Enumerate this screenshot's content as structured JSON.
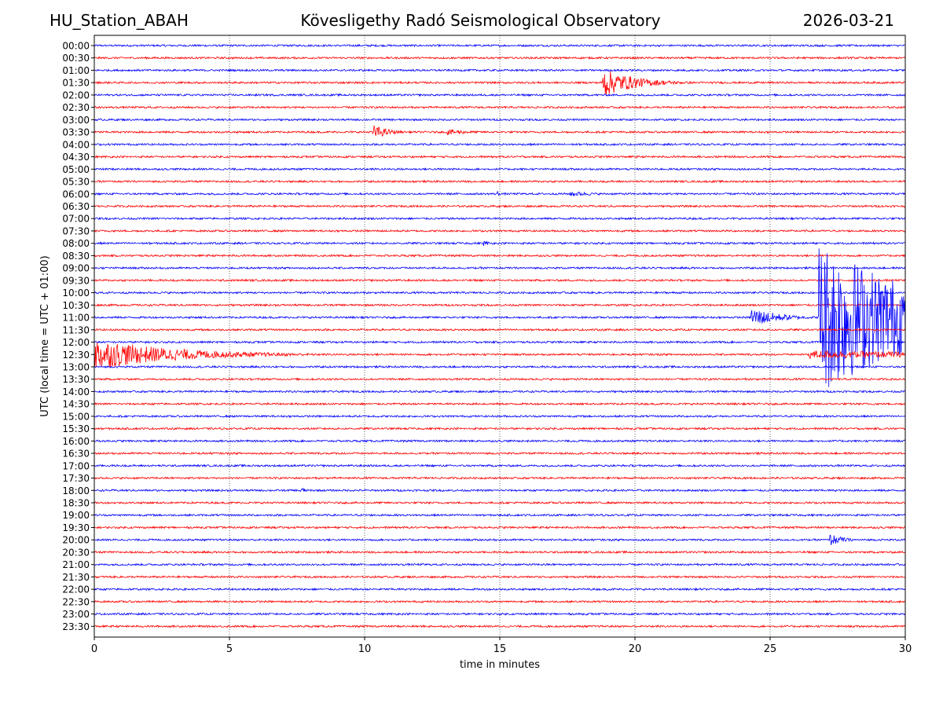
{
  "header": {
    "station": "HU_Station_ABAH",
    "observatory": "Kövesligethy Radó Seismological Observatory",
    "date": "2026-03-21"
  },
  "chart_data": {
    "type": "line",
    "title": "Kövesligethy Radó Seismological Observatory",
    "xlabel": "time in minutes",
    "ylabel": "UTC (local time = UTC + 01:00)",
    "xlim": [
      0,
      30
    ],
    "xticks": [
      "0",
      "5",
      "10",
      "15",
      "20",
      "25",
      "30"
    ],
    "grid": "vertical dotted at 5-minute ticks",
    "row_labels": [
      "00:00",
      "00:30",
      "01:00",
      "01:30",
      "02:00",
      "02:30",
      "03:00",
      "03:30",
      "04:00",
      "04:30",
      "05:00",
      "05:30",
      "06:00",
      "06:30",
      "07:00",
      "07:30",
      "08:00",
      "08:30",
      "09:00",
      "09:30",
      "10:00",
      "10:30",
      "11:00",
      "11:30",
      "12:00",
      "12:30",
      "13:00",
      "13:30",
      "14:00",
      "14:30",
      "15:00",
      "15:30",
      "16:00",
      "16:30",
      "17:00",
      "17:30",
      "18:00",
      "18:30",
      "19:00",
      "19:30",
      "20:00",
      "20:30",
      "21:00",
      "21:30",
      "22:00",
      "22:30",
      "23:00",
      "23:30"
    ],
    "colors": {
      "even_rows": "#0000ff",
      "odd_rows": "#ff0000"
    },
    "noise_amplitude": 0.1,
    "events": [
      {
        "row": "01:30",
        "start_min": 18.8,
        "end_min": 23.5,
        "peak": 1.6,
        "decay_min": 1.2
      },
      {
        "row": "03:30",
        "start_min": 10.3,
        "end_min": 12.5,
        "peak": 0.8,
        "decay_min": 0.6
      },
      {
        "row": "03:30",
        "start_min": 13.0,
        "end_min": 14.8,
        "peak": 0.35,
        "decay_min": 1.0
      },
      {
        "row": "06:00",
        "start_min": 14.9,
        "end_min": 15.2,
        "peak": 0.35,
        "decay_min": 0.1
      },
      {
        "row": "06:00",
        "start_min": 17.6,
        "end_min": 19.5,
        "peak": 0.3,
        "decay_min": 1.0
      },
      {
        "row": "08:00",
        "start_min": 14.4,
        "end_min": 14.9,
        "peak": 0.3,
        "decay_min": 0.3
      },
      {
        "row": "11:00",
        "start_min": 24.3,
        "end_min": 26.8,
        "peak": 1.1,
        "decay_min": 1.0
      },
      {
        "row": "11:00",
        "start_min": 26.8,
        "end_min": 30.0,
        "peak": 8.5,
        "decay_min": 4.0
      },
      {
        "row": "12:30",
        "start_min": 0.0,
        "end_min": 12.0,
        "peak": 1.7,
        "decay_min": 3.0
      },
      {
        "row": "12:30",
        "start_min": 26.4,
        "end_min": 30.0,
        "peak": 0.45,
        "decay_min": 8.0
      },
      {
        "row": "18:00",
        "start_min": 7.6,
        "end_min": 8.0,
        "peak": 0.45,
        "decay_min": 0.2
      },
      {
        "row": "20:00",
        "start_min": 27.2,
        "end_min": 29.0,
        "peak": 0.7,
        "decay_min": 0.5
      }
    ]
  }
}
